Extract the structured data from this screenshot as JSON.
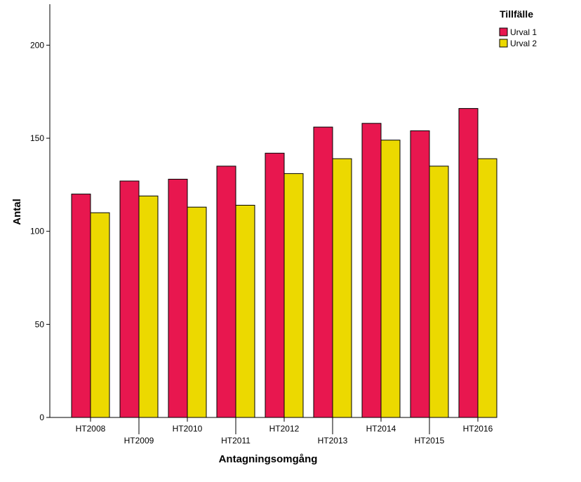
{
  "chart_data": {
    "type": "bar",
    "categories": [
      "HT2008",
      "HT2009",
      "HT2010",
      "HT2011",
      "HT2012",
      "HT2013",
      "HT2014",
      "HT2015",
      "HT2016"
    ],
    "series": [
      {
        "name": "Urval 1",
        "color": "#e8174f",
        "values": [
          120,
          127,
          128,
          135,
          142,
          156,
          158,
          154,
          166
        ]
      },
      {
        "name": "Urval 2",
        "color": "#ecd900",
        "values": [
          110,
          119,
          113,
          114,
          131,
          139,
          149,
          135,
          139
        ]
      }
    ],
    "title": "",
    "xlabel": "Antagningsomgång",
    "ylabel": "Antal",
    "ylim": [
      0,
      222
    ],
    "yticks": [
      0,
      50,
      100,
      150,
      200
    ],
    "grid": false,
    "legend": {
      "title": "Tillfälle",
      "placement": "top-right"
    }
  }
}
